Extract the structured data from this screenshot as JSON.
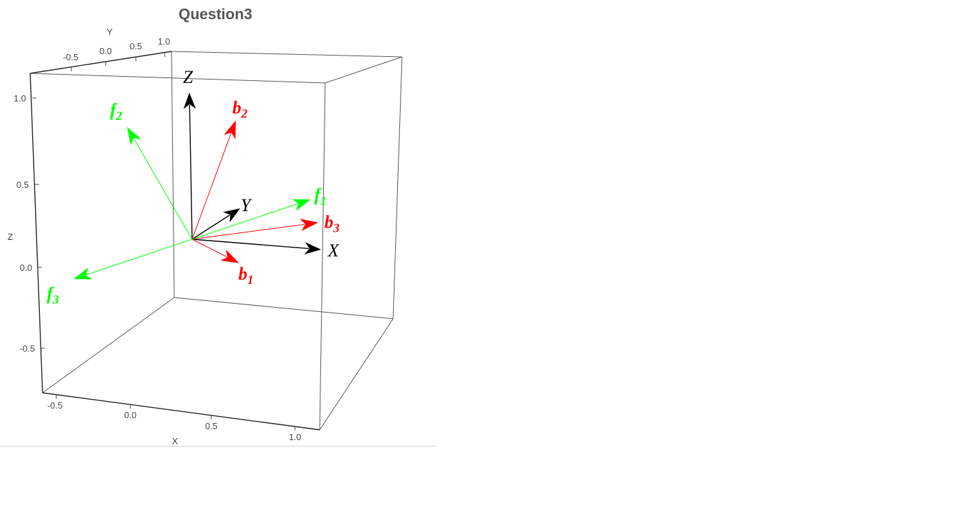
{
  "chart_data": {
    "type": "3d-vector",
    "title": "Question3",
    "axes": {
      "x": {
        "label": "X",
        "range": [
          -0.6,
          1.1
        ],
        "ticks": [
          "-0.5",
          "0.0",
          "0.5",
          "1.0"
        ]
      },
      "y": {
        "label": "Y",
        "range": [
          -0.8,
          1.1
        ],
        "ticks": [
          "-0.5",
          "0.0",
          "0.5",
          "1.0"
        ]
      },
      "z": {
        "label": "Z",
        "range": [
          -0.75,
          1.15
        ],
        "ticks": [
          "-0.5",
          "0.0",
          "0.5",
          "1.0"
        ]
      }
    },
    "box": true,
    "vectors": [
      {
        "name": "X",
        "label": "X",
        "sub": "",
        "color": "#000000",
        "bold": false,
        "end": [
          1,
          0,
          0
        ]
      },
      {
        "name": "Y",
        "label": "Y",
        "sub": "",
        "color": "#000000",
        "bold": false,
        "end": [
          0,
          1,
          0
        ]
      },
      {
        "name": "Z",
        "label": "Z",
        "sub": "",
        "color": "#000000",
        "bold": false,
        "end": [
          0,
          0,
          1
        ]
      },
      {
        "name": "b1",
        "label": "b",
        "sub": "1",
        "color": "#ff0000",
        "bold": true,
        "end": [
          0.58,
          -0.58,
          0.0
        ]
      },
      {
        "name": "b2",
        "label": "b",
        "sub": "2",
        "color": "#ff0000",
        "bold": true,
        "end": [
          0.3,
          0.15,
          0.8
        ]
      },
      {
        "name": "b3",
        "label": "b",
        "sub": "3",
        "color": "#ff0000",
        "bold": true,
        "end": [
          0.85,
          0.35,
          0.1
        ]
      },
      {
        "name": "f1",
        "label": "f",
        "sub": "1",
        "color": "#00ff00",
        "bold": true,
        "end": [
          0.55,
          1.0,
          0.1
        ]
      },
      {
        "name": "f2",
        "label": "f",
        "sub": "2",
        "color": "#00ff00",
        "bold": true,
        "end": [
          -0.3,
          -0.5,
          0.85
        ]
      },
      {
        "name": "f3",
        "label": "f",
        "sub": "3",
        "color": "#00ff00",
        "bold": true,
        "end": [
          -0.55,
          -1.0,
          -0.1
        ]
      }
    ]
  }
}
